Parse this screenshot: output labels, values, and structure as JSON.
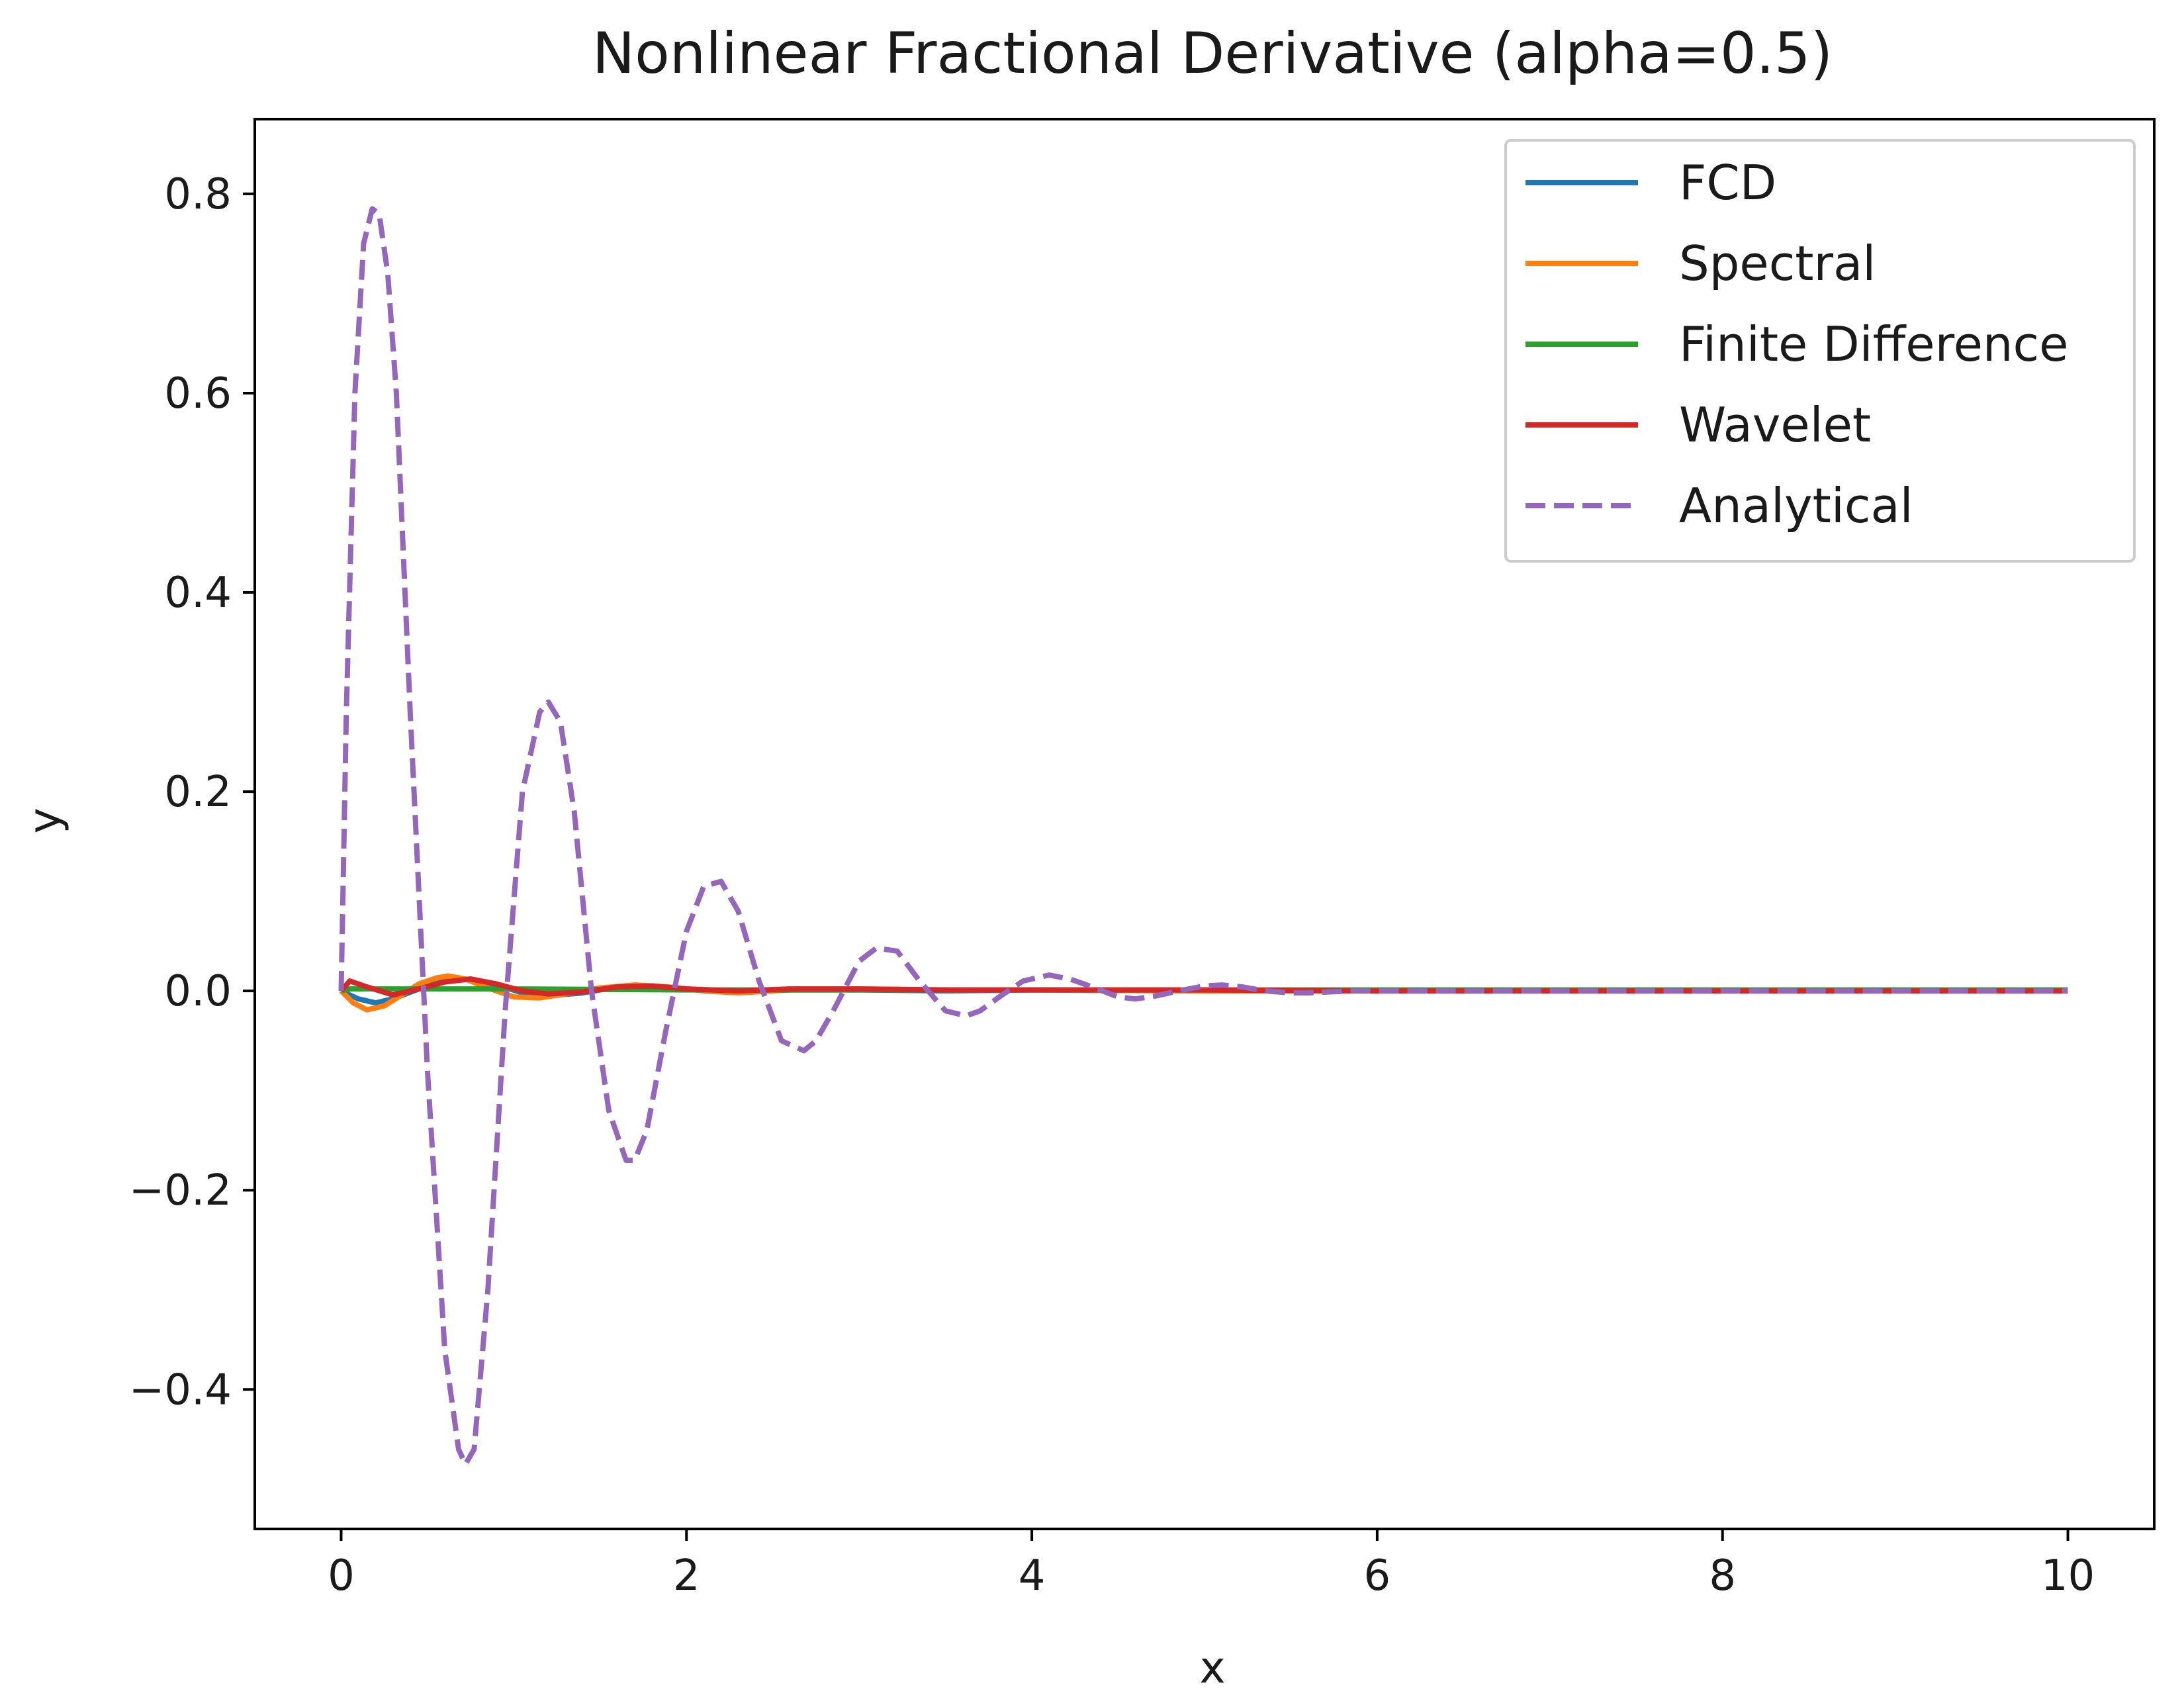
{
  "chart_data": {
    "type": "line",
    "title": "Nonlinear Fractional Derivative (alpha=0.5)",
    "xlabel": "x",
    "ylabel": "y",
    "xlim": [
      -0.5,
      10.5
    ],
    "ylim": [
      -0.54,
      0.875
    ],
    "xticks": [
      0,
      2,
      4,
      6,
      8,
      10
    ],
    "xtick_labels": [
      "0",
      "2",
      "4",
      "6",
      "8",
      "10"
    ],
    "yticks": [
      -0.4,
      -0.2,
      0.0,
      0.2,
      0.4,
      0.6,
      0.8
    ],
    "ytick_labels": [
      "−0.4",
      "−0.2",
      "0.0",
      "0.2",
      "0.4",
      "0.6",
      "0.8"
    ],
    "grid": false,
    "legend_position": "top-right",
    "series": [
      {
        "name": "FCD",
        "color": "#1f77b4",
        "dash": "solid",
        "x": [
          0,
          0.1,
          0.2,
          0.3,
          0.45,
          0.6,
          0.75,
          0.9,
          1.05,
          1.2,
          1.4,
          1.6,
          1.8,
          2.0,
          2.3,
          2.6,
          3.0,
          3.5,
          4.0,
          5.0,
          6.0,
          8.0,
          10.0
        ],
        "y": [
          0.0,
          -0.008,
          -0.012,
          -0.008,
          0.002,
          0.01,
          0.012,
          0.006,
          -0.002,
          -0.005,
          -0.002,
          0.004,
          0.005,
          0.002,
          -0.001,
          0.001,
          0.001,
          0.0,
          0.001,
          0.0,
          0.0,
          0.0,
          0.0
        ]
      },
      {
        "name": "Spectral",
        "color": "#ff7f0e",
        "dash": "solid",
        "x": [
          0,
          0.07,
          0.15,
          0.25,
          0.35,
          0.45,
          0.55,
          0.62,
          0.72,
          0.85,
          1.0,
          1.15,
          1.3,
          1.5,
          1.7,
          1.9,
          2.1,
          2.3,
          2.6,
          3.0,
          3.5,
          4.0,
          5.0,
          6.0,
          8.0,
          10.0
        ],
        "y": [
          0.0,
          -0.012,
          -0.019,
          -0.015,
          -0.004,
          0.007,
          0.013,
          0.015,
          0.012,
          0.003,
          -0.006,
          -0.007,
          -0.003,
          0.003,
          0.006,
          0.004,
          0.0,
          -0.002,
          0.001,
          0.002,
          0.001,
          0.001,
          0.0,
          0.0,
          0.0,
          0.0
        ]
      },
      {
        "name": "Finite Difference",
        "color": "#2ca02c",
        "dash": "solid",
        "x": [
          0,
          0.05,
          0.2,
          0.5,
          1.0,
          2.0,
          4.0,
          6.0,
          8.0,
          10.0
        ],
        "y": [
          0.0,
          0.002,
          0.002,
          0.002,
          0.002,
          0.001,
          0.001,
          0.001,
          0.001,
          0.001
        ]
      },
      {
        "name": "Wavelet",
        "color": "#d62728",
        "dash": "solid",
        "x": [
          0,
          0.05,
          0.15,
          0.3,
          0.45,
          0.6,
          0.75,
          0.9,
          1.05,
          1.2,
          1.4,
          1.6,
          1.8,
          2.0,
          2.3,
          2.6,
          3.0,
          3.5,
          4.0,
          5.0,
          6.0,
          8.0,
          10.0
        ],
        "y": [
          0.0,
          0.01,
          0.004,
          -0.004,
          0.002,
          0.009,
          0.012,
          0.007,
          0.0,
          -0.003,
          -0.001,
          0.004,
          0.005,
          0.002,
          0.0,
          0.002,
          0.002,
          0.001,
          0.001,
          0.001,
          0.0,
          0.0,
          0.0
        ]
      },
      {
        "name": "Analytical",
        "color": "#9467bd",
        "dash": "dashed",
        "x": [
          0,
          0.03,
          0.08,
          0.13,
          0.18,
          0.22,
          0.27,
          0.32,
          0.4,
          0.5,
          0.6,
          0.68,
          0.72,
          0.77,
          0.85,
          0.95,
          1.05,
          1.15,
          1.2,
          1.27,
          1.35,
          1.45,
          1.55,
          1.65,
          1.7,
          1.77,
          1.88,
          2.0,
          2.1,
          2.2,
          2.3,
          2.42,
          2.55,
          2.68,
          2.75,
          2.85,
          3.0,
          3.1,
          3.22,
          3.35,
          3.5,
          3.62,
          3.7,
          3.82,
          3.95,
          4.1,
          4.22,
          4.35,
          4.5,
          4.6,
          4.72,
          4.85,
          5.0,
          5.1,
          5.22,
          5.35,
          5.5,
          5.6,
          5.72,
          5.85,
          6.0,
          6.5,
          7.0,
          8.0,
          9.0,
          10.0
        ],
        "y": [
          0.0,
          0.28,
          0.6,
          0.75,
          0.785,
          0.78,
          0.72,
          0.6,
          0.28,
          -0.08,
          -0.36,
          -0.46,
          -0.475,
          -0.46,
          -0.3,
          -0.02,
          0.2,
          0.28,
          0.29,
          0.27,
          0.18,
          0.0,
          -0.12,
          -0.17,
          -0.17,
          -0.14,
          -0.04,
          0.06,
          0.105,
          0.11,
          0.08,
          0.01,
          -0.05,
          -0.06,
          -0.05,
          -0.02,
          0.03,
          0.043,
          0.04,
          0.01,
          -0.02,
          -0.025,
          -0.02,
          -0.005,
          0.01,
          0.016,
          0.012,
          0.004,
          -0.006,
          -0.008,
          -0.005,
          0.0,
          0.005,
          0.006,
          0.004,
          0.0,
          -0.002,
          -0.002,
          -0.001,
          0.0,
          0.0,
          0.0,
          0.0,
          0.0,
          0.0,
          0.0
        ]
      }
    ]
  }
}
